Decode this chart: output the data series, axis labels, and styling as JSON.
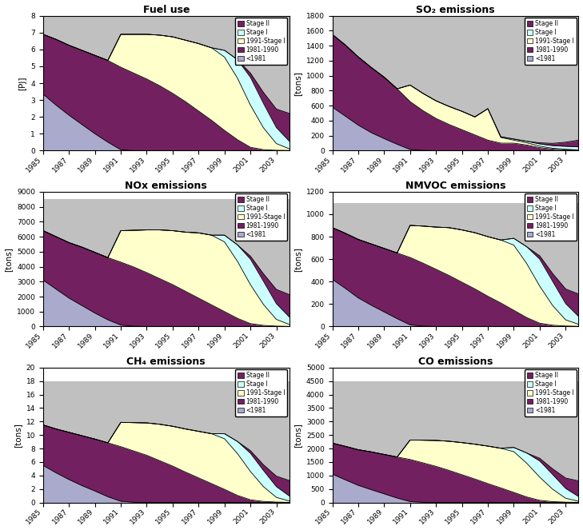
{
  "years": [
    1985,
    1986,
    1987,
    1988,
    1989,
    1990,
    1991,
    1992,
    1993,
    1994,
    1995,
    1996,
    1997,
    1998,
    1999,
    2000,
    2001,
    2002,
    2003,
    2004
  ],
  "fuel_use": {
    "title": "Fuel use",
    "ylabel": "[PJ]",
    "ylim": [
      0,
      8
    ],
    "yticks": [
      0,
      1,
      2,
      3,
      4,
      5,
      6,
      7,
      8
    ],
    "lt1981": [
      3.35,
      2.7,
      2.1,
      1.55,
      1.0,
      0.5,
      0.05,
      0.0,
      0.0,
      0.0,
      0.0,
      0.0,
      0.0,
      0.0,
      0.0,
      0.0,
      0.0,
      0.0,
      0.0,
      0.0
    ],
    "y1981_1990": [
      3.55,
      3.9,
      4.15,
      4.4,
      4.65,
      4.85,
      4.9,
      4.6,
      4.25,
      3.85,
      3.4,
      2.9,
      2.35,
      1.8,
      1.2,
      0.65,
      0.2,
      0.06,
      0.02,
      0.01
    ],
    "y1991_stageI": [
      0.0,
      0.0,
      0.0,
      0.0,
      0.0,
      0.0,
      1.95,
      2.3,
      2.65,
      3.0,
      3.35,
      3.65,
      4.0,
      4.3,
      4.35,
      3.65,
      2.5,
      1.3,
      0.4,
      0.1
    ],
    "stageI": [
      0.0,
      0.0,
      0.0,
      0.0,
      0.0,
      0.0,
      0.0,
      0.0,
      0.0,
      0.0,
      0.0,
      0.0,
      0.0,
      0.0,
      0.4,
      1.1,
      1.65,
      1.45,
      0.95,
      0.45
    ],
    "stageII": [
      0.0,
      0.0,
      0.0,
      0.0,
      0.0,
      0.0,
      0.0,
      0.0,
      0.0,
      0.0,
      0.0,
      0.0,
      0.0,
      0.0,
      0.0,
      0.0,
      0.25,
      0.65,
      1.1,
      1.65
    ],
    "total_gray": [
      8.0,
      8.0,
      8.0,
      8.0,
      8.0,
      8.0,
      8.0,
      8.0,
      8.0,
      8.0,
      8.0,
      8.0,
      8.0,
      8.0,
      8.0,
      8.0,
      8.0,
      8.0,
      8.0,
      8.0
    ]
  },
  "so2": {
    "title": "SO₂ emissions",
    "ylabel": "[tons]",
    "ylim": [
      0,
      1800
    ],
    "yticks": [
      0,
      200,
      400,
      600,
      800,
      1000,
      1200,
      1400,
      1600,
      1800
    ],
    "lt1981": [
      580,
      460,
      340,
      240,
      160,
      85,
      15,
      3,
      0,
      0,
      0,
      0,
      0,
      0,
      0,
      0,
      0,
      0,
      0,
      0
    ],
    "y1981_1990": [
      970,
      950,
      910,
      870,
      820,
      740,
      640,
      530,
      430,
      350,
      280,
      210,
      140,
      100,
      100,
      75,
      40,
      20,
      10,
      5
    ],
    "y1991_stageI": [
      0,
      0,
      0,
      0,
      0,
      0,
      220,
      230,
      235,
      240,
      245,
      240,
      420,
      75,
      40,
      30,
      20,
      12,
      8,
      5
    ],
    "stageI": [
      0,
      0,
      0,
      0,
      0,
      0,
      0,
      0,
      0,
      0,
      0,
      0,
      0,
      10,
      15,
      20,
      30,
      35,
      40,
      40
    ],
    "stageII": [
      0,
      0,
      0,
      0,
      0,
      0,
      0,
      0,
      0,
      0,
      0,
      0,
      0,
      0,
      0,
      0,
      15,
      30,
      55,
      90
    ],
    "total_gray": [
      1800,
      1800,
      1800,
      1800,
      1800,
      1800,
      1800,
      1800,
      1800,
      1800,
      1800,
      1800,
      1800,
      1800,
      1800,
      1800,
      1800,
      1800,
      1800,
      1800
    ]
  },
  "nox": {
    "title": "NOx emissions",
    "ylabel": "[tons]",
    "ylim": [
      0,
      9000
    ],
    "yticks": [
      0,
      1000,
      2000,
      3000,
      4000,
      5000,
      6000,
      7000,
      8000,
      9000
    ],
    "lt1981": [
      3100,
      2500,
      1900,
      1400,
      900,
      450,
      100,
      25,
      0,
      0,
      0,
      0,
      0,
      0,
      0,
      0,
      0,
      0,
      0,
      0
    ],
    "y1981_1990": [
      3300,
      3500,
      3700,
      3900,
      4050,
      4150,
      4200,
      3950,
      3600,
      3200,
      2800,
      2350,
      1900,
      1450,
      1000,
      550,
      200,
      80,
      30,
      10
    ],
    "y1991_stageI": [
      0,
      0,
      0,
      0,
      0,
      0,
      2100,
      2450,
      2850,
      3250,
      3600,
      3950,
      4350,
      4650,
      4650,
      3800,
      2600,
      1400,
      450,
      130
    ],
    "stageI": [
      0,
      0,
      0,
      0,
      0,
      0,
      0,
      0,
      0,
      0,
      0,
      0,
      0,
      0,
      450,
      1100,
      1700,
      1550,
      1050,
      500
    ],
    "stageII": [
      0,
      0,
      0,
      0,
      0,
      0,
      0,
      0,
      0,
      0,
      0,
      0,
      0,
      0,
      0,
      0,
      200,
      500,
      950,
      1500
    ],
    "total_gray": [
      8500,
      8500,
      8500,
      8500,
      8500,
      8500,
      8500,
      8500,
      8500,
      8500,
      8500,
      8500,
      8500,
      8500,
      8500,
      8500,
      8500,
      8500,
      8500,
      8500
    ]
  },
  "nmvoc": {
    "title": "NMVOC emissions",
    "ylabel": "[tons]",
    "ylim": [
      0,
      1200
    ],
    "yticks": [
      0,
      200,
      400,
      600,
      800,
      1000,
      1200
    ],
    "lt1981": [
      420,
      340,
      255,
      190,
      130,
      70,
      15,
      4,
      0,
      0,
      0,
      0,
      0,
      0,
      0,
      0,
      0,
      0,
      0,
      0
    ],
    "y1981_1990": [
      460,
      490,
      520,
      545,
      565,
      585,
      600,
      560,
      510,
      455,
      395,
      335,
      270,
      210,
      145,
      80,
      30,
      12,
      5,
      2
    ],
    "y1991_stageI": [
      0,
      0,
      0,
      0,
      0,
      0,
      285,
      330,
      375,
      425,
      465,
      500,
      530,
      560,
      580,
      480,
      330,
      175,
      55,
      18
    ],
    "stageI": [
      0,
      0,
      0,
      0,
      0,
      0,
      0,
      0,
      0,
      0,
      0,
      0,
      0,
      0,
      60,
      150,
      240,
      215,
      145,
      70
    ],
    "stageII": [
      0,
      0,
      0,
      0,
      0,
      0,
      0,
      0,
      0,
      0,
      0,
      0,
      0,
      0,
      0,
      0,
      30,
      70,
      130,
      200
    ],
    "total_gray": [
      1100,
      1100,
      1100,
      1100,
      1100,
      1100,
      1100,
      1100,
      1100,
      1100,
      1100,
      1100,
      1100,
      1100,
      1100,
      1100,
      1100,
      1100,
      1100,
      1100
    ]
  },
  "ch4": {
    "title": "CH₄ emissions",
    "ylabel": "[tons]",
    "ylim": [
      0,
      20
    ],
    "yticks": [
      0,
      2,
      4,
      6,
      8,
      10,
      12,
      14,
      16,
      18,
      20
    ],
    "lt1981": [
      5.5,
      4.4,
      3.4,
      2.5,
      1.7,
      0.85,
      0.18,
      0.04,
      0.0,
      0.0,
      0.0,
      0.0,
      0.0,
      0.0,
      0.0,
      0.0,
      0.0,
      0.0,
      0.0,
      0.0
    ],
    "y1981_1990": [
      6.0,
      6.5,
      7.0,
      7.4,
      7.7,
      8.0,
      8.1,
      7.6,
      7.0,
      6.2,
      5.4,
      4.5,
      3.65,
      2.8,
      1.95,
      1.05,
      0.4,
      0.16,
      0.06,
      0.02
    ],
    "y1991_stageI": [
      0.0,
      0.0,
      0.0,
      0.0,
      0.0,
      0.0,
      3.6,
      4.2,
      4.8,
      5.4,
      5.9,
      6.4,
      6.9,
      7.4,
      7.5,
      6.2,
      4.2,
      2.2,
      0.7,
      0.2
    ],
    "stageI": [
      0.0,
      0.0,
      0.0,
      0.0,
      0.0,
      0.0,
      0.0,
      0.0,
      0.0,
      0.0,
      0.0,
      0.0,
      0.0,
      0.0,
      0.75,
      1.8,
      2.7,
      2.4,
      1.6,
      0.75
    ],
    "stageII": [
      0.0,
      0.0,
      0.0,
      0.0,
      0.0,
      0.0,
      0.0,
      0.0,
      0.0,
      0.0,
      0.0,
      0.0,
      0.0,
      0.0,
      0.0,
      0.0,
      0.4,
      0.85,
      1.55,
      2.3
    ],
    "total_gray": [
      18.0,
      18.0,
      18.0,
      18.0,
      18.0,
      18.0,
      18.0,
      18.0,
      18.0,
      18.0,
      18.0,
      18.0,
      18.0,
      18.0,
      18.0,
      18.0,
      18.0,
      18.0,
      18.0,
      18.0
    ]
  },
  "co": {
    "title": "CO emissions",
    "ylabel": "[tons]",
    "ylim": [
      0,
      5000
    ],
    "yticks": [
      0,
      500,
      1000,
      1500,
      2000,
      2500,
      3000,
      3500,
      4000,
      4500,
      5000
    ],
    "lt1981": [
      1050,
      840,
      635,
      475,
      320,
      165,
      35,
      9,
      0,
      0,
      0,
      0,
      0,
      0,
      0,
      0,
      0,
      0,
      0,
      0
    ],
    "y1981_1990": [
      1150,
      1240,
      1320,
      1400,
      1460,
      1520,
      1560,
      1460,
      1340,
      1190,
      1030,
      870,
      700,
      540,
      375,
      205,
      80,
      32,
      12,
      4
    ],
    "y1991_stageI": [
      0,
      0,
      0,
      0,
      0,
      0,
      720,
      840,
      960,
      1080,
      1190,
      1290,
      1390,
      1470,
      1510,
      1250,
      860,
      460,
      145,
      42
    ],
    "stageI": [
      0,
      0,
      0,
      0,
      0,
      0,
      0,
      0,
      0,
      0,
      0,
      0,
      0,
      0,
      155,
      380,
      600,
      545,
      365,
      175
    ],
    "stageII": [
      0,
      0,
      0,
      0,
      0,
      0,
      0,
      0,
      0,
      0,
      0,
      0,
      0,
      0,
      0,
      0,
      100,
      210,
      385,
      580
    ],
    "total_gray": [
      4500,
      4500,
      4500,
      4500,
      4500,
      4500,
      4500,
      4500,
      4500,
      4500,
      4500,
      4500,
      4500,
      4500,
      4500,
      4500,
      4500,
      4500,
      4500,
      4500
    ]
  }
}
